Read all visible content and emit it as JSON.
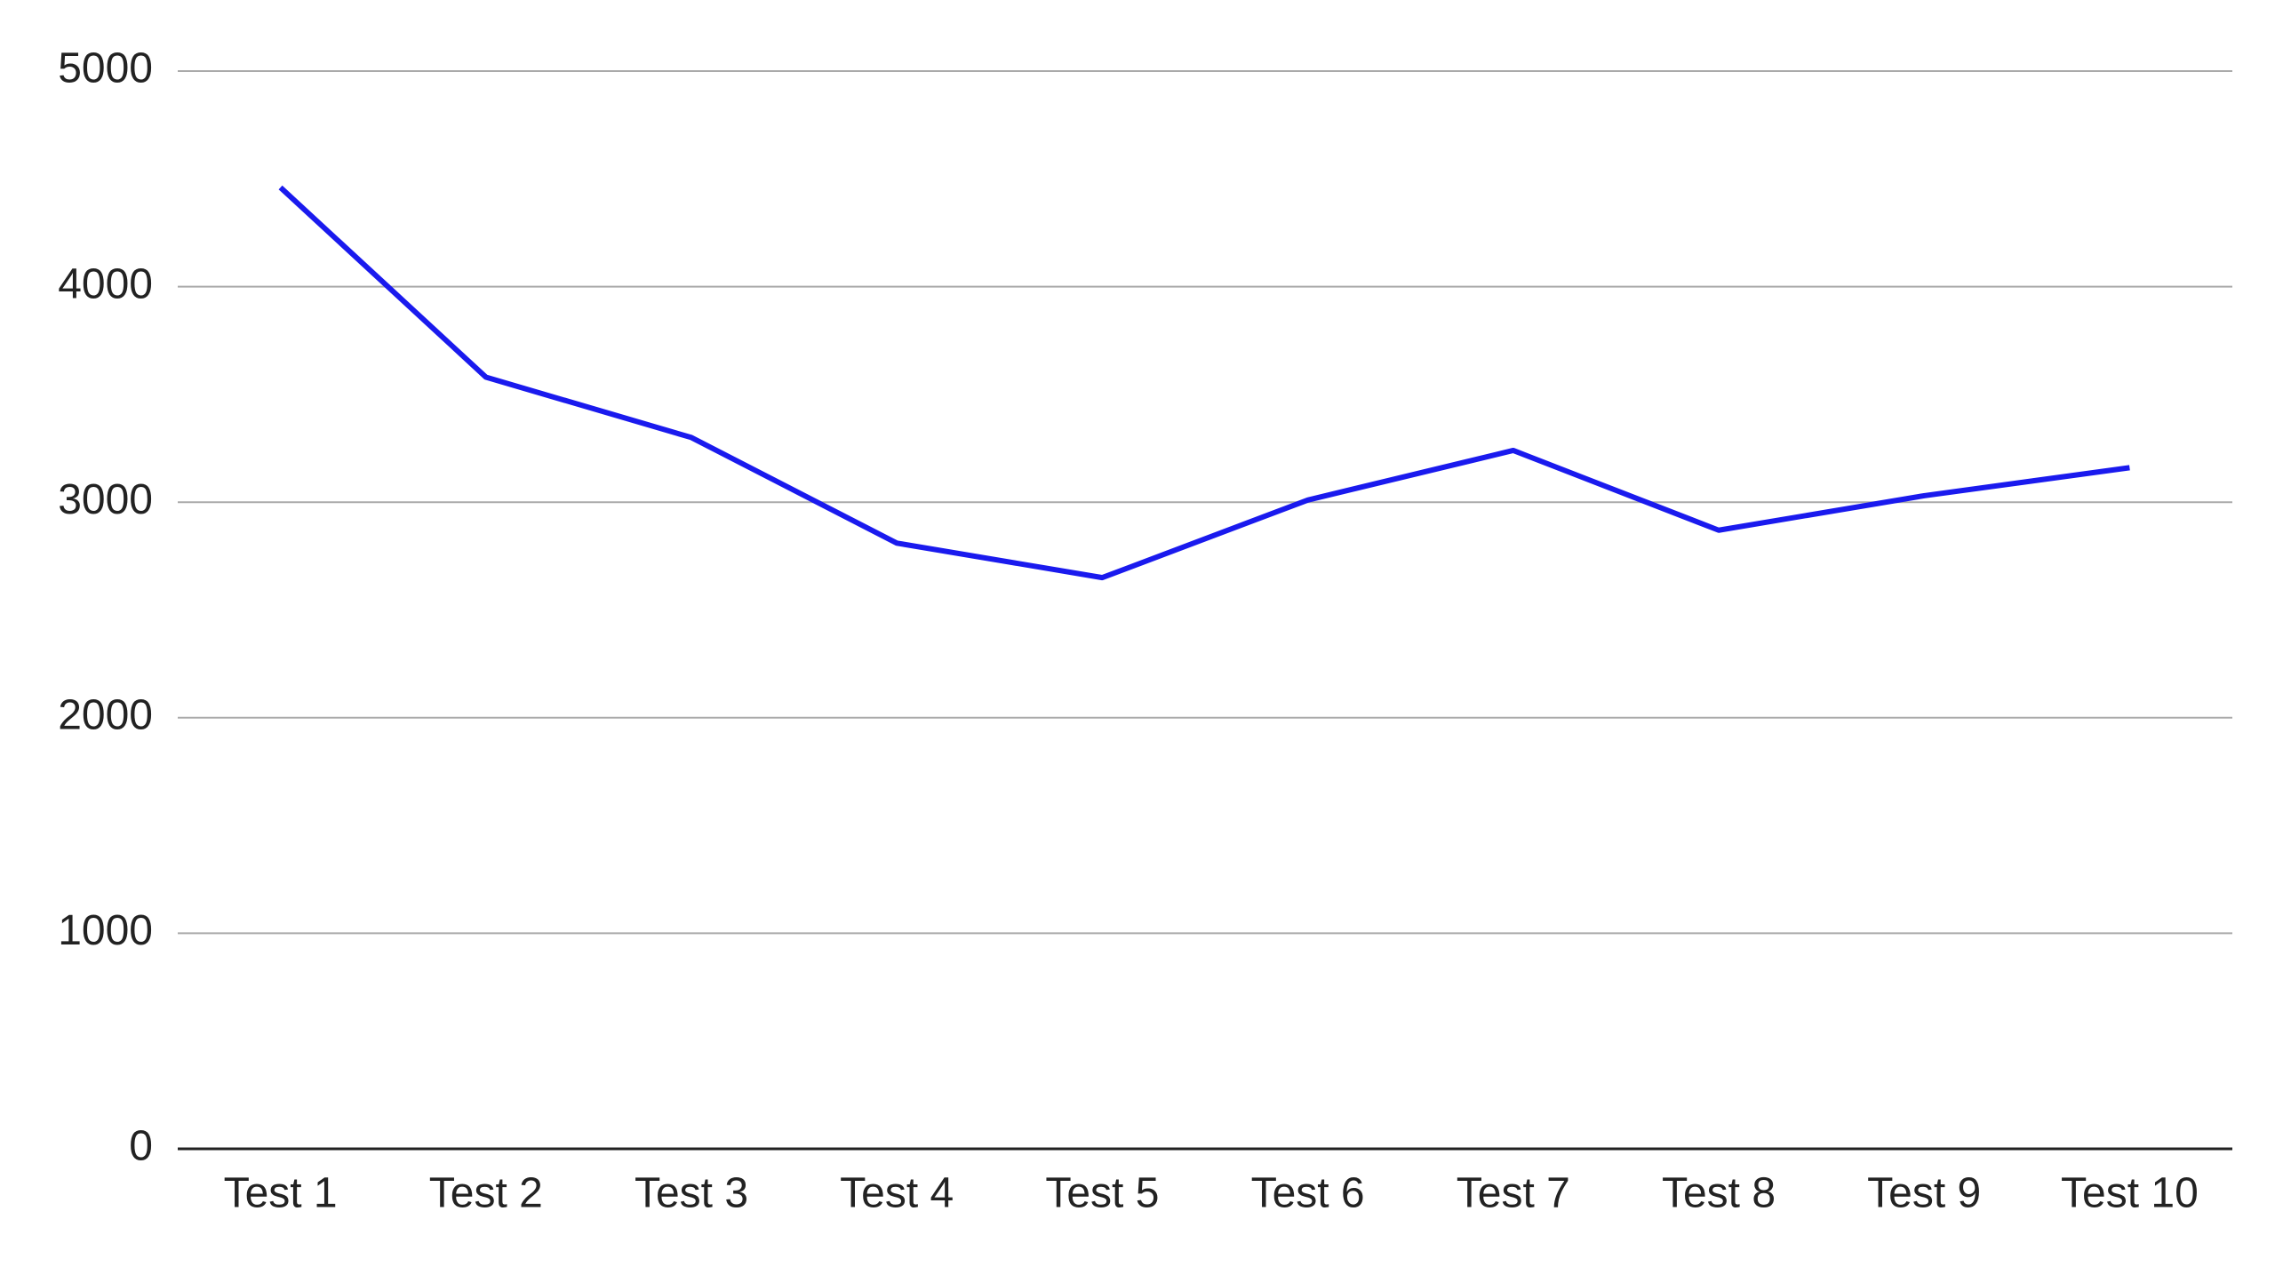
{
  "chart_data": {
    "type": "line",
    "categories": [
      "Test 1",
      "Test 2",
      "Test 3",
      "Test 4",
      "Test 5",
      "Test 6",
      "Test 7",
      "Test 8",
      "Test 9",
      "Test 10"
    ],
    "series": [
      {
        "color": "#1a1aee",
        "values": [
          4460,
          3580,
          3300,
          2810,
          2650,
          3010,
          3240,
          2870,
          3030,
          3160
        ]
      }
    ],
    "ylim": [
      0,
      5000
    ],
    "yticks": [
      0,
      1000,
      2000,
      3000,
      4000,
      5000
    ],
    "grid": true
  }
}
